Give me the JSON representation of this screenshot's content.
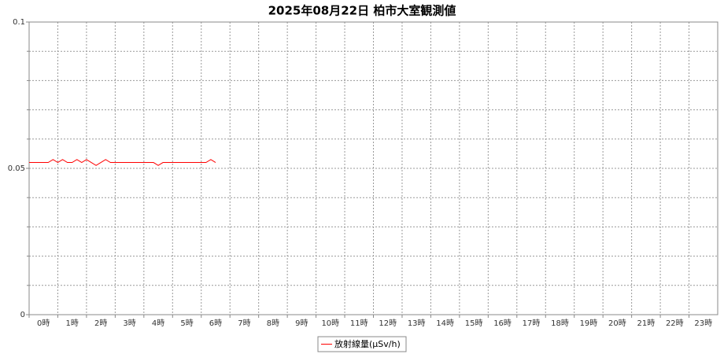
{
  "chart_data": {
    "type": "line",
    "title": "2025年08月22日 柏市大室観測値",
    "x": [
      0,
      10,
      20,
      30,
      40,
      50,
      60,
      70,
      80,
      90,
      100,
      110,
      120,
      130,
      140,
      150,
      160,
      170,
      180,
      190,
      200,
      210,
      220,
      230,
      240,
      250,
      260,
      270,
      280,
      290,
      300,
      310,
      320,
      330,
      340,
      350,
      360,
      370,
      380,
      390
    ],
    "series": [
      {
        "name": "放射線量(μSv/h)",
        "color": "#ff0000",
        "values": [
          0.052,
          0.052,
          0.052,
          0.052,
          0.052,
          0.053,
          0.052,
          0.053,
          0.052,
          0.052,
          0.053,
          0.052,
          0.053,
          0.052,
          0.051,
          0.052,
          0.053,
          0.052,
          0.052,
          0.052,
          0.052,
          0.052,
          0.052,
          0.052,
          0.052,
          0.052,
          0.052,
          0.051,
          0.052,
          0.052,
          0.052,
          0.052,
          0.052,
          0.052,
          0.052,
          0.052,
          0.052,
          0.052,
          0.053,
          0.052
        ]
      }
    ],
    "xlim": [
      0,
      1440
    ],
    "xticks": [
      {
        "value": 0,
        "label": "0時"
      },
      {
        "value": 60,
        "label": "1時"
      },
      {
        "value": 120,
        "label": "2時"
      },
      {
        "value": 180,
        "label": "3時"
      },
      {
        "value": 240,
        "label": "4時"
      },
      {
        "value": 300,
        "label": "5時"
      },
      {
        "value": 360,
        "label": "6時"
      },
      {
        "value": 420,
        "label": "7時"
      },
      {
        "value": 480,
        "label": "8時"
      },
      {
        "value": 540,
        "label": "9時"
      },
      {
        "value": 600,
        "label": "10時"
      },
      {
        "value": 660,
        "label": "11時"
      },
      {
        "value": 720,
        "label": "12時"
      },
      {
        "value": 780,
        "label": "13時"
      },
      {
        "value": 840,
        "label": "14時"
      },
      {
        "value": 900,
        "label": "15時"
      },
      {
        "value": 960,
        "label": "16時"
      },
      {
        "value": 1020,
        "label": "17時"
      },
      {
        "value": 1080,
        "label": "18時"
      },
      {
        "value": 1140,
        "label": "19時"
      },
      {
        "value": 1200,
        "label": "20時"
      },
      {
        "value": 1260,
        "label": "21時"
      },
      {
        "value": 1320,
        "label": "22時"
      },
      {
        "value": 1380,
        "label": "23時"
      }
    ],
    "ylim": [
      0,
      0.1
    ],
    "yticks": [
      0,
      0.05,
      0.1
    ],
    "grid": true
  }
}
